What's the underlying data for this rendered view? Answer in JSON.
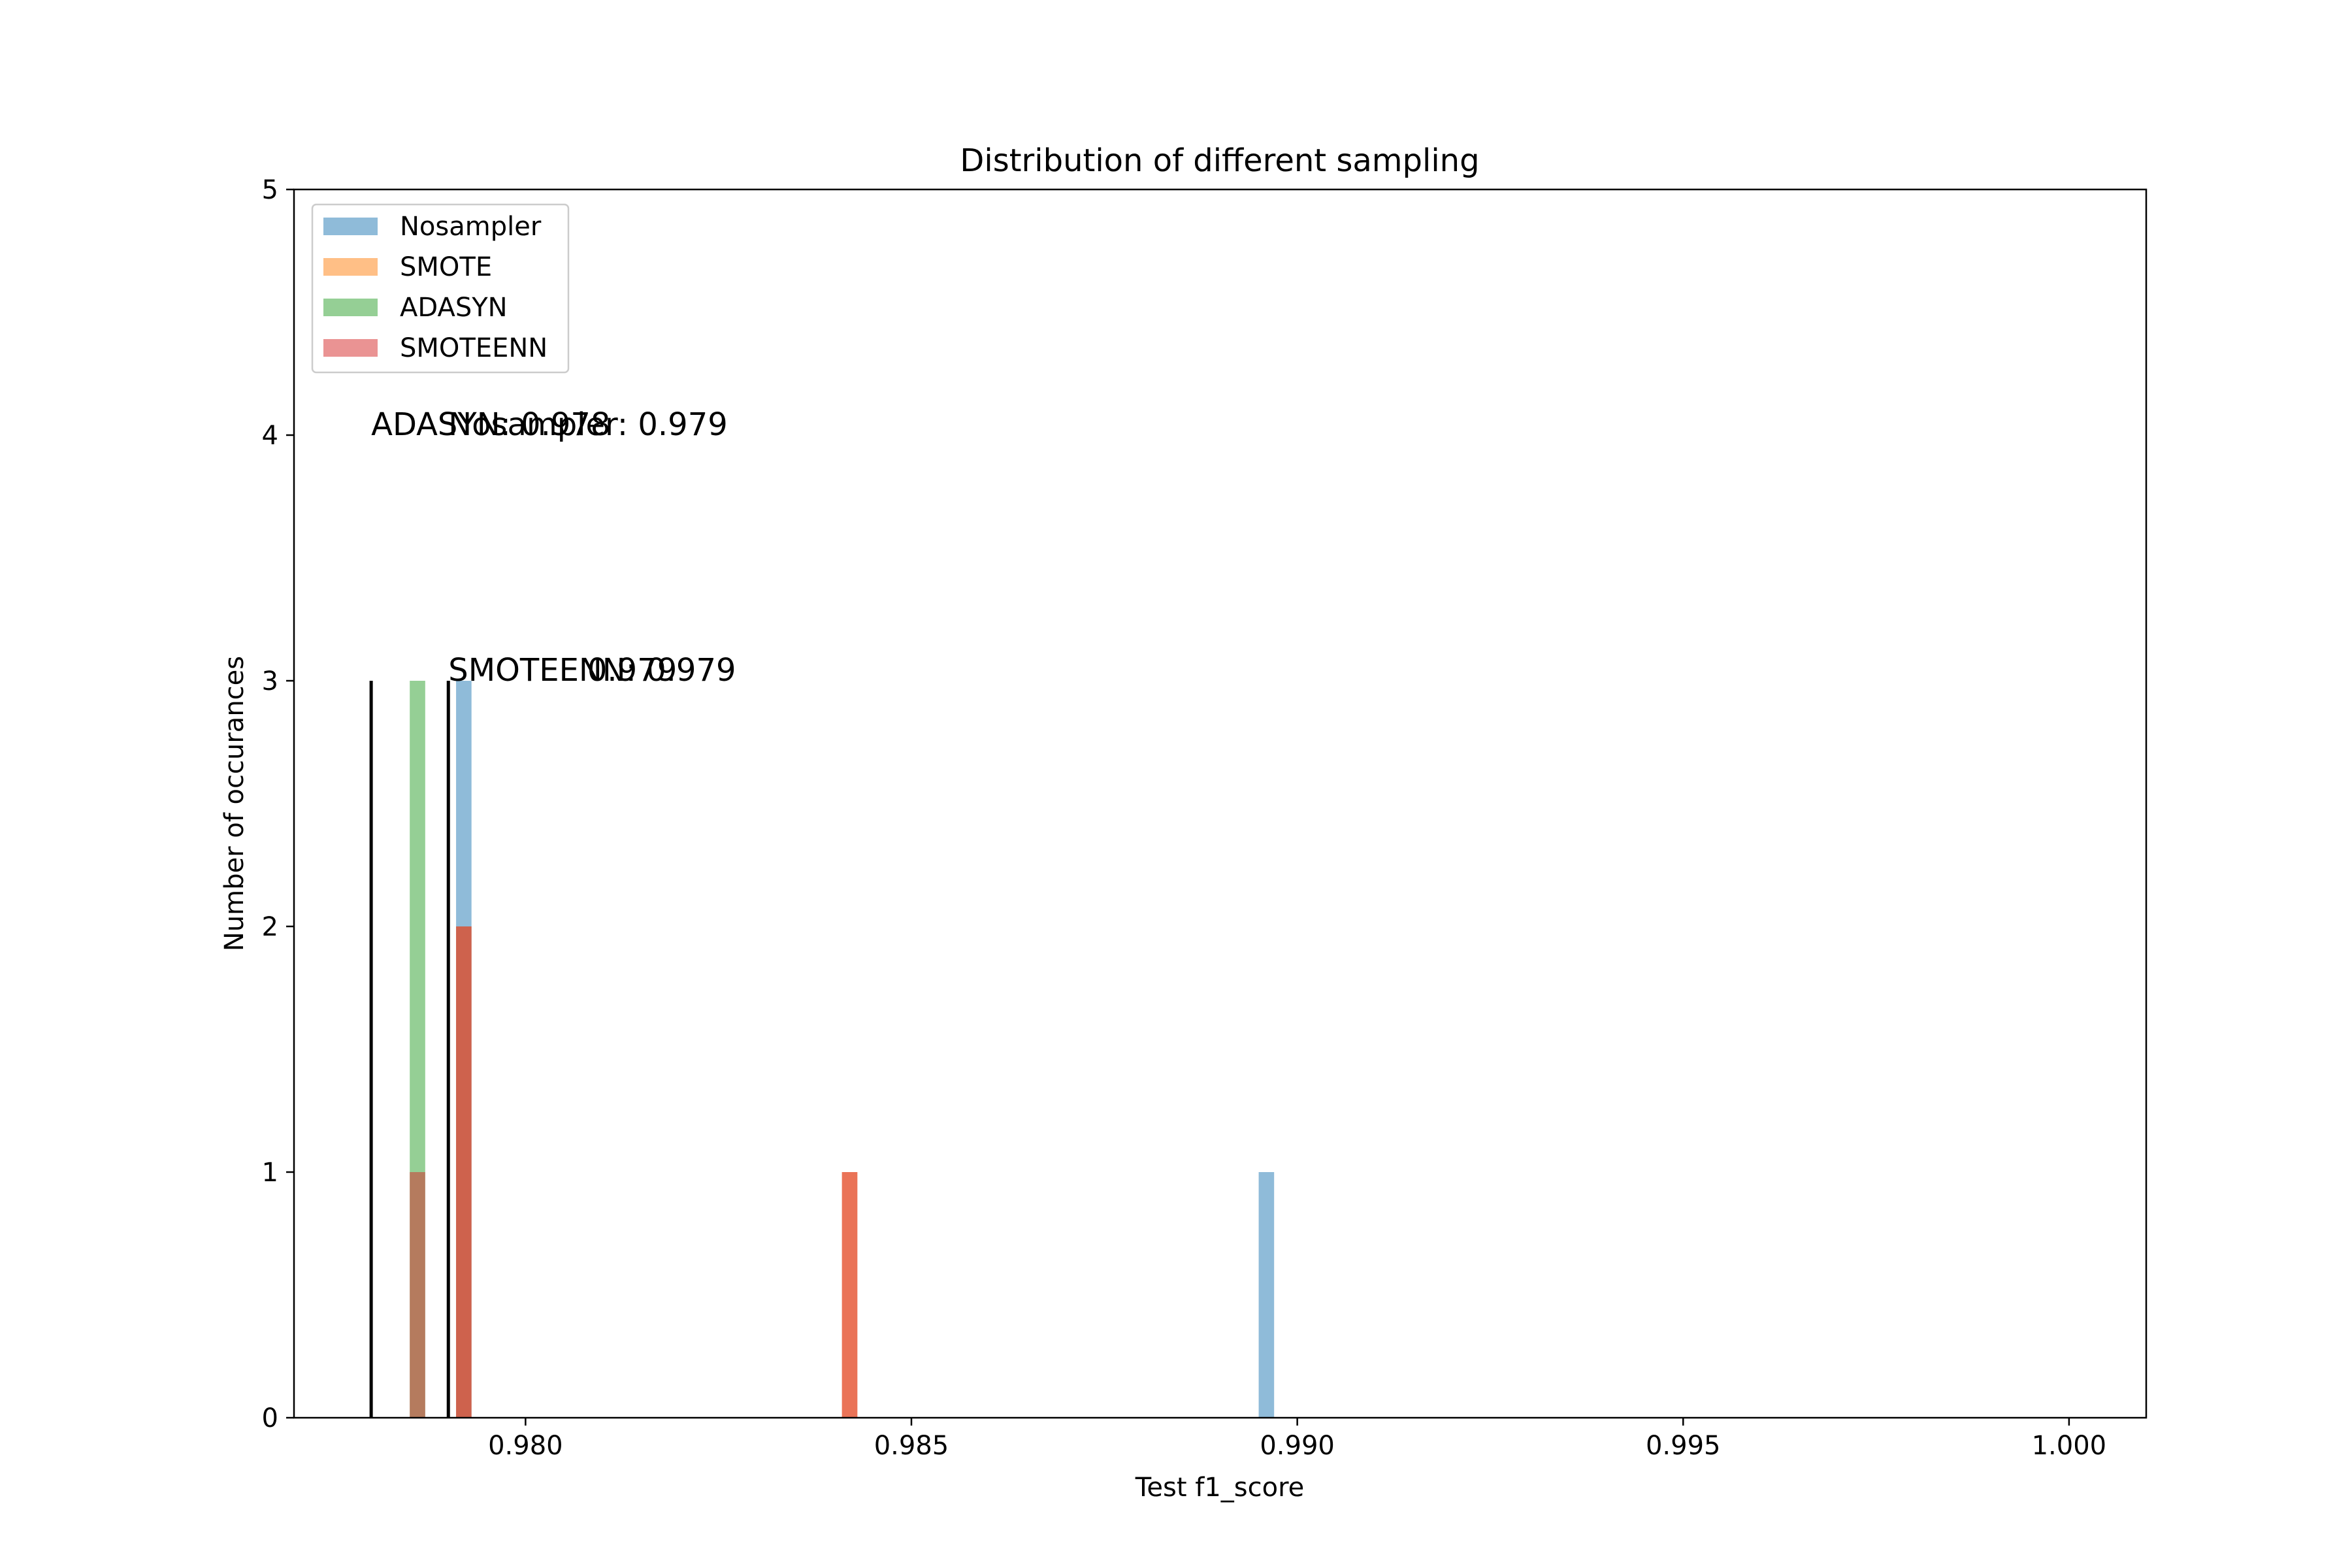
{
  "chart_data": {
    "type": "bar",
    "title": "Distribution of different sampling",
    "xlabel": "Test f1_score",
    "ylabel": "Number of occurances",
    "xlim": [
      0.977,
      1.001
    ],
    "ylim": [
      0,
      5
    ],
    "xticks": [
      0.98,
      0.985,
      0.99,
      0.995,
      1.0
    ],
    "xtick_labels": [
      "0.980",
      "0.985",
      "0.990",
      "0.995",
      "1.000"
    ],
    "yticks": [
      0,
      1,
      2,
      3,
      4,
      5
    ],
    "ytick_labels": [
      "0",
      "1",
      "2",
      "3",
      "4",
      "5"
    ],
    "grid": false,
    "legend_position": "top-left",
    "bar_width": 0.0002,
    "series": [
      {
        "name": "Nosampler",
        "color": "#1f77b4",
        "alpha": 0.5,
        "bars": [
          {
            "x": 0.9792,
            "count": 3
          },
          {
            "x": 0.9896,
            "count": 1
          }
        ]
      },
      {
        "name": "SMOTE",
        "color": "#ff7f0e",
        "alpha": 0.5,
        "bars": [
          {
            "x": 0.9792,
            "count": 2
          },
          {
            "x": 0.9842,
            "count": 1
          }
        ]
      },
      {
        "name": "ADASYN",
        "color": "#2ca02c",
        "alpha": 0.5,
        "bars": [
          {
            "x": 0.9786,
            "count": 3
          }
        ]
      },
      {
        "name": "SMOTEENN",
        "color": "#d62728",
        "alpha": 0.5,
        "bars": [
          {
            "x": 0.9786,
            "count": 1
          },
          {
            "x": 0.9792,
            "count": 2
          },
          {
            "x": 0.9842,
            "count": 1
          }
        ]
      }
    ],
    "reference_lines": [
      {
        "x": 0.978,
        "height": 3
      },
      {
        "x": 0.979,
        "height": 3
      }
    ],
    "annotations": [
      {
        "text": "ADASYN: 0.978",
        "x": 0.978,
        "y": 4
      },
      {
        "text": "Nosampler: 0.979",
        "x": 0.979,
        "y": 4
      },
      {
        "text": "SMOTEENN: 0.979",
        "x": 0.979,
        "y": 3
      },
      {
        "text": "0.979",
        "x": 0.9808,
        "y": 3
      }
    ]
  }
}
